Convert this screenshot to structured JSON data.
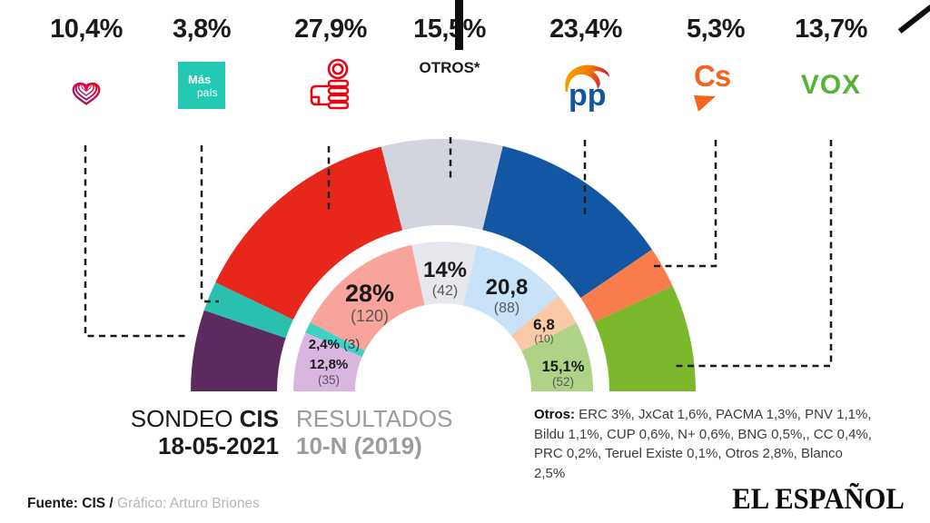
{
  "header": {
    "parties": [
      {
        "name": "Unidas Podemos",
        "pct": "10,4%",
        "logo": "unidas-podemos-heart"
      },
      {
        "name": "Más País",
        "pct": "3,8%",
        "logo": "mas-pais-square",
        "logo_line1": "Más",
        "logo_line2": "país"
      },
      {
        "name": "PSOE",
        "pct": "27,9%",
        "logo": "psoe-fist-rose"
      },
      {
        "name": "Otros",
        "pct": "15,5%",
        "logo": "text-label",
        "label": "OTROS*"
      },
      {
        "name": "PP",
        "pct": "23,4%",
        "logo": "pp-gull",
        "logo_text": "pp"
      },
      {
        "name": "Ciudadanos",
        "pct": "5,3%",
        "logo": "cs-mark",
        "logo_text": "Cs"
      },
      {
        "name": "VOX",
        "pct": "13,7%",
        "logo": "vox-wordmark",
        "logo_text": "VOX"
      }
    ]
  },
  "chart_data": {
    "type": "pie",
    "subtype": "half-donut-double-ring",
    "layout": "semicircle, 180 degrees, flat bottom; outer ring = 2021 poll, inner ring = 2019 election results",
    "rings": [
      {
        "name": "SONDEO CIS 18-05-2021",
        "position": "outer",
        "segments": [
          {
            "party": "Unidas Podemos",
            "value": 10.4,
            "label": "10,4%",
            "color": "#5c2a60"
          },
          {
            "party": "Más País",
            "value": 3.8,
            "label": "3,8%",
            "color": "#2ac0af"
          },
          {
            "party": "PSOE",
            "value": 27.9,
            "label": "27,9%",
            "color": "#e7271b"
          },
          {
            "party": "Otros",
            "value": 15.5,
            "label": "15,5%",
            "color": "#d3d5de"
          },
          {
            "party": "PP",
            "value": 23.4,
            "label": "23,4%",
            "color": "#1356a3"
          },
          {
            "party": "Cs",
            "value": 5.3,
            "label": "5,3%",
            "color": "#f97c4d"
          },
          {
            "party": "VOX",
            "value": 13.7,
            "label": "13,7%",
            "color": "#7cb82c"
          }
        ]
      },
      {
        "name": "RESULTADOS 10-N (2019)",
        "position": "inner",
        "segments": [
          {
            "party": "Unidas Podemos",
            "value": 12.8,
            "label": "12,8%",
            "seats": 35,
            "seats_label": "(35)",
            "color": "#d9b6e0"
          },
          {
            "party": "Más País",
            "value": 2.4,
            "label": "2,4%",
            "seats": 3,
            "seats_label": "(3)",
            "color": "#3ed2c2"
          },
          {
            "party": "PSOE",
            "value": 28,
            "label": "28%",
            "seats": 120,
            "seats_label": "(120)",
            "color": "#f8a49a"
          },
          {
            "party": "Otros",
            "value": 14,
            "label": "14%",
            "seats": 42,
            "seats_label": "(42)",
            "color": "#e6e8ee"
          },
          {
            "party": "PP",
            "value": 20.8,
            "label": "20,8",
            "seats": 88,
            "seats_label": "(88)",
            "color": "#c8e2f8"
          },
          {
            "party": "Cs",
            "value": 6.8,
            "label": "6,8",
            "seats": 10,
            "seats_label": "(10)",
            "color": "#fac9a6"
          },
          {
            "party": "VOX",
            "value": 15.1,
            "label": "15,1%",
            "seats": 52,
            "seats_label": "(52)",
            "color": "#aed386"
          }
        ]
      }
    ]
  },
  "captions": {
    "poll_word": "SONDEO ",
    "poll_bold": "CIS",
    "poll_date": "18-05-2021",
    "results_word": "RESULTADOS",
    "results_bold": "10-N (2019)",
    "footnote_bold": "Otros:",
    "footnote_text": " ERC 3%, JxCat 1,6%, PACMA 1,3%, PNV 1,1%, Bildu 1,1%,  CUP 0,6%, N+ 0,6%, BNG 0,5%,, CC 0,4%, PRC 0,2%, Teruel Existe 0,1%, Otros 2,8%, Blanco 2,5%"
  },
  "footer": {
    "source_bold": "Fuente: CIS /",
    "credit": " Gráfico: Arturo Briones",
    "brand": "EL ESPAÑOL"
  }
}
